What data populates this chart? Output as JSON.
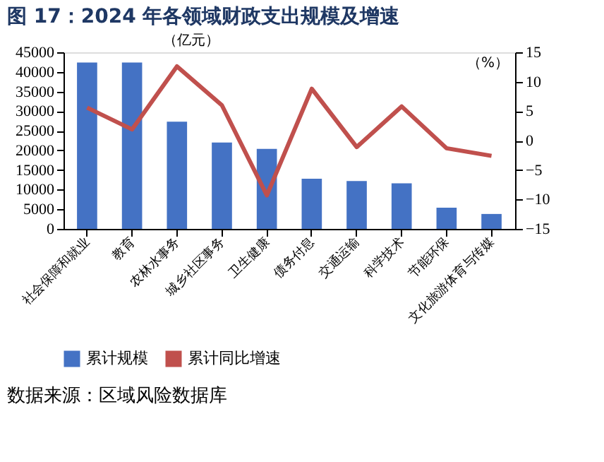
{
  "chart_data": {
    "type": "bar",
    "title": "图 17：2024 年各领域财政支出规模及增速",
    "categories": [
      "社会保障和就业",
      "教育",
      "农林水事务",
      "城乡社区事务",
      "卫生健康",
      "债务付息",
      "交通运输",
      "科学技术",
      "节能环保",
      "文化旅游体育与传媒"
    ],
    "series": [
      {
        "name": "累计规模",
        "color": "#4472c4",
        "values": [
          42400,
          42400,
          27300,
          22000,
          20400,
          12800,
          12200,
          11600,
          5400,
          3800
        ]
      },
      {
        "name": "累计同比增速",
        "type": "line",
        "axis": "y2",
        "color": "#c0504d",
        "values": [
          5.6,
          1.9,
          12.6,
          6.0,
          -9.3,
          8.8,
          -1.1,
          5.8,
          -1.3,
          -2.6
        ]
      }
    ],
    "ylabel": "（亿元）",
    "y2label": "（%）",
    "ylim": [
      0,
      45000
    ],
    "yticks": [
      0,
      5000,
      10000,
      15000,
      20000,
      25000,
      30000,
      35000,
      40000,
      45000
    ],
    "y2lim": [
      -15,
      15
    ],
    "y2ticks": [
      -15,
      -10,
      -5,
      0,
      5,
      10,
      15
    ],
    "grid": false,
    "legend": "bottom",
    "annotations": [
      "数据来源：区域风险数据库"
    ]
  }
}
